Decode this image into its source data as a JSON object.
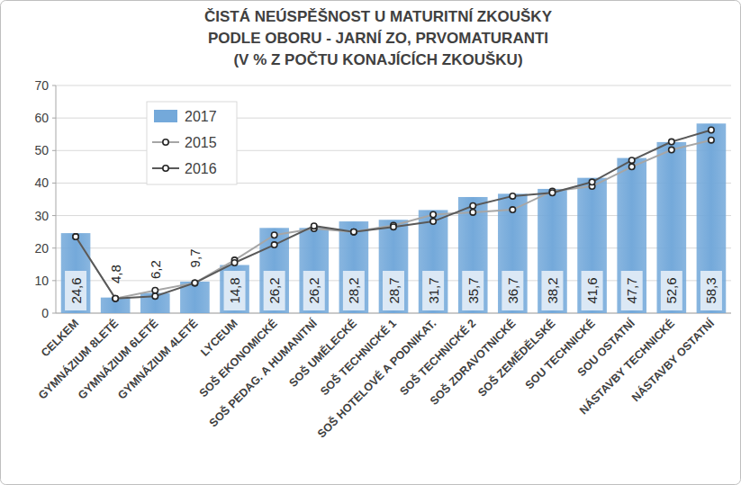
{
  "chart_data": {
    "type": "bar",
    "title": "ČISTÁ NEÚSPĚŠNOST U MATURITNÍ ZKOUŠKY\nPODLE OBORU - JARNÍ ZO, PRVOMATURANTI\n(V % Z POČTU KONAJÍCÍCH ZKOUŠKU)",
    "categories": [
      "CELKEM",
      "GYMNÁZIUM 8LETÉ",
      "GYMNÁZIUM 6LETÉ",
      "GYMNÁZIUM 4LETÉ",
      "LYCEUM",
      "SOŠ EKONOMICKÉ",
      "SOŠ PEDAG. A HUMANITNÍ",
      "SOŠ UMĚLECKÉ",
      "SOŠ TECHNICKÉ 1",
      "SOŠ HOTELOVÉ A PODNIKAT.",
      "SOŠ TECHNICKÉ 2",
      "SOŠ ZDRAVOTNICKÉ",
      "SOŠ ZEMĚDĚLSKÉ",
      "SOU TECHNICKÉ",
      "SOU OSTATNÍ",
      "NÁSTAVBY TECHNICKÉ",
      "NÁSTAVBY OSTATNÍ"
    ],
    "series": [
      {
        "name": "2017",
        "type": "bar",
        "color": "#74a9da",
        "values": [
          24.6,
          4.8,
          6.2,
          9.7,
          14.8,
          26.2,
          26.2,
          28.2,
          28.7,
          31.7,
          35.7,
          36.7,
          38.2,
          41.6,
          47.7,
          52.6,
          58.3
        ],
        "value_labels": [
          "24,6",
          "4,8",
          "6,2",
          "9,7",
          "14,8",
          "26,2",
          "26,2",
          "28,2",
          "28,7",
          "31,7",
          "35,7",
          "36,7",
          "38,2",
          "41,6",
          "47,7",
          "52,6",
          "58,3"
        ]
      },
      {
        "name": "2015",
        "type": "line",
        "color": "#a6a6a6",
        "marker": "circle",
        "values": [
          23.5,
          4.5,
          7,
          9.3,
          16.3,
          24,
          26,
          25,
          27,
          30.3,
          31,
          31.8,
          37.5,
          39,
          45,
          50.2,
          53.2
        ]
      },
      {
        "name": "2016",
        "type": "line",
        "color": "#595959",
        "marker": "circle",
        "values": [
          23.5,
          4.5,
          5.2,
          9.3,
          15.5,
          21,
          26.8,
          25,
          26.5,
          28.2,
          33,
          36,
          37,
          40.3,
          47,
          52.7,
          56.3
        ]
      }
    ],
    "ylim": [
      0,
      70
    ],
    "yticks": [
      0,
      10,
      20,
      30,
      40,
      50,
      60,
      70
    ],
    "grid": true,
    "legend": "upper left",
    "data_labels": true
  }
}
